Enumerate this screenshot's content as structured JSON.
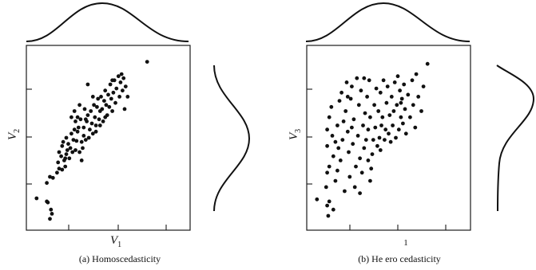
{
  "chart_data": [
    {
      "type": "scatter",
      "panel": "a",
      "caption": "(a) Homoscedasticity",
      "xlabel_var": "V",
      "xlabel_sub": "1",
      "ylabel_var": "V",
      "ylabel_sub": "2",
      "marginal_x": "normal",
      "marginal_y": "normal",
      "points": [
        [
          0.5,
          1.05
        ],
        [
          1.0,
          0.9
        ],
        [
          1.05,
          0.85
        ],
        [
          1.2,
          0.5
        ],
        [
          1.25,
          0.3
        ],
        [
          1.15,
          0.05
        ],
        [
          1.0,
          1.8
        ],
        [
          1.15,
          2.1
        ],
        [
          1.3,
          2.05
        ],
        [
          1.5,
          2.3
        ],
        [
          1.6,
          2.5
        ],
        [
          1.75,
          2.45
        ],
        [
          1.55,
          2.8
        ],
        [
          1.6,
          3.3
        ],
        [
          1.75,
          3.6
        ],
        [
          1.7,
          3.1
        ],
        [
          1.85,
          2.9
        ],
        [
          1.95,
          3.2
        ],
        [
          1.8,
          3.8
        ],
        [
          1.9,
          3.0
        ],
        [
          1.95,
          4.0
        ],
        [
          2.0,
          3.4
        ],
        [
          2.05,
          3.7
        ],
        [
          2.15,
          3.5
        ],
        [
          2.2,
          4.2
        ],
        [
          2.25,
          3.3
        ],
        [
          2.3,
          3.9
        ],
        [
          2.35,
          4.4
        ],
        [
          2.4,
          4.8
        ],
        [
          2.35,
          5.3
        ],
        [
          2.4,
          3.4
        ],
        [
          2.45,
          3.85
        ],
        [
          2.5,
          4.3
        ],
        [
          2.5,
          5.0
        ],
        [
          2.55,
          4.5
        ],
        [
          2.6,
          3.3
        ],
        [
          2.65,
          4.9
        ],
        [
          2.7,
          3.8
        ],
        [
          2.75,
          3.5
        ],
        [
          2.8,
          4.5
        ],
        [
          2.8,
          4.1
        ],
        [
          2.85,
          5.4
        ],
        [
          2.9,
          3.9
        ],
        [
          2.95,
          4.8
        ],
        [
          3.0,
          5.1
        ],
        [
          3.05,
          4.0
        ],
        [
          3.1,
          4.4
        ],
        [
          3.15,
          5.3
        ],
        [
          3.2,
          4.7
        ],
        [
          3.25,
          4.2
        ],
        [
          3.3,
          5.6
        ],
        [
          3.35,
          5.0
        ],
        [
          3.4,
          4.6
        ],
        [
          3.45,
          5.5
        ],
        [
          3.5,
          5.9
        ],
        [
          3.55,
          4.9
        ],
        [
          3.6,
          5.3
        ],
        [
          3.65,
          6.0
        ],
        [
          3.7,
          5.4
        ],
        [
          3.75,
          4.8
        ],
        [
          3.8,
          5.8
        ],
        [
          3.85,
          6.3
        ],
        [
          3.9,
          5.6
        ],
        [
          3.95,
          5.1
        ],
        [
          4.0,
          6.1
        ],
        [
          4.05,
          5.5
        ],
        [
          4.1,
          6.6
        ],
        [
          4.15,
          5.9
        ],
        [
          4.2,
          5.3
        ],
        [
          4.25,
          6.2
        ],
        [
          4.3,
          6.8
        ],
        [
          4.35,
          5.7
        ],
        [
          4.4,
          6.4
        ],
        [
          4.5,
          7.0
        ],
        [
          4.55,
          6.0
        ],
        [
          4.6,
          6.7
        ],
        [
          4.65,
          7.1
        ],
        [
          4.7,
          6.3
        ],
        [
          4.75,
          6.9
        ],
        [
          4.8,
          5.4
        ],
        [
          4.85,
          6.5
        ],
        [
          4.95,
          6.0
        ],
        [
          3.25,
          6.0
        ],
        [
          3.0,
          6.6
        ],
        [
          2.6,
          5.6
        ],
        [
          2.2,
          5.0
        ],
        [
          2.9,
          4.9
        ],
        [
          3.6,
          4.6
        ],
        [
          2.1,
          3.0
        ],
        [
          1.9,
          2.6
        ],
        [
          2.7,
          2.9
        ],
        [
          3.4,
          4.3
        ],
        [
          4.2,
          6.8
        ],
        [
          3.85,
          5.0
        ],
        [
          5.9,
          7.7
        ]
      ]
    },
    {
      "type": "scatter",
      "panel": "b",
      "caption": "(b) He ero cedasticity",
      "xlabel": "1",
      "ylabel_var": "V",
      "ylabel_sub": "3",
      "marginal_x": "normal",
      "marginal_y": "skewed",
      "points": [
        [
          0.5,
          1.0
        ],
        [
          1.0,
          0.7
        ],
        [
          1.1,
          0.9
        ],
        [
          1.05,
          0.2
        ],
        [
          1.3,
          0.5
        ],
        [
          0.95,
          1.6
        ],
        [
          1.0,
          2.3
        ],
        [
          1.1,
          2.6
        ],
        [
          1.0,
          3.6
        ],
        [
          1.0,
          4.4
        ],
        [
          1.1,
          5.0
        ],
        [
          1.2,
          5.5
        ],
        [
          1.25,
          4.1
        ],
        [
          1.3,
          3.1
        ],
        [
          1.4,
          1.9
        ],
        [
          1.5,
          2.4
        ],
        [
          1.55,
          3.5
        ],
        [
          1.5,
          4.6
        ],
        [
          1.6,
          5.8
        ],
        [
          1.7,
          6.2
        ],
        [
          1.65,
          2.9
        ],
        [
          1.75,
          3.9
        ],
        [
          1.8,
          4.8
        ],
        [
          1.85,
          1.4
        ],
        [
          1.9,
          5.3
        ],
        [
          1.95,
          6.7
        ],
        [
          2.0,
          4.3
        ],
        [
          2.05,
          3.3
        ],
        [
          2.1,
          2.1
        ],
        [
          2.15,
          5.9
        ],
        [
          2.2,
          6.5
        ],
        [
          2.25,
          3.7
        ],
        [
          2.3,
          4.9
        ],
        [
          2.35,
          1.6
        ],
        [
          2.4,
          2.6
        ],
        [
          2.45,
          6.9
        ],
        [
          2.5,
          4.1
        ],
        [
          2.55,
          5.6
        ],
        [
          2.6,
          3.0
        ],
        [
          2.65,
          6.3
        ],
        [
          2.7,
          2.3
        ],
        [
          2.75,
          4.6
        ],
        [
          2.8,
          3.5
        ],
        [
          2.85,
          5.2
        ],
        [
          2.9,
          3.9
        ],
        [
          2.95,
          6.0
        ],
        [
          3.0,
          4.4
        ],
        [
          3.05,
          6.8
        ],
        [
          3.1,
          5.0
        ],
        [
          3.15,
          2.5
        ],
        [
          3.2,
          3.2
        ],
        [
          3.25,
          3.9
        ],
        [
          3.3,
          5.6
        ],
        [
          3.35,
          4.5
        ],
        [
          3.4,
          6.4
        ],
        [
          3.45,
          3.6
        ],
        [
          3.5,
          5.3
        ],
        [
          3.55,
          4.0
        ],
        [
          3.6,
          6.2
        ],
        [
          3.65,
          4.6
        ],
        [
          3.7,
          5.0
        ],
        [
          3.75,
          6.8
        ],
        [
          3.8,
          3.9
        ],
        [
          3.85,
          4.4
        ],
        [
          3.9,
          5.7
        ],
        [
          3.95,
          6.5
        ],
        [
          4.0,
          4.2
        ],
        [
          4.05,
          5.1
        ],
        [
          4.1,
          3.8
        ],
        [
          4.15,
          6.0
        ],
        [
          4.2,
          4.6
        ],
        [
          4.25,
          5.3
        ],
        [
          4.3,
          6.7
        ],
        [
          4.35,
          4.0
        ],
        [
          4.4,
          5.6
        ],
        [
          4.45,
          7.0
        ],
        [
          4.5,
          4.4
        ],
        [
          4.55,
          6.3
        ],
        [
          4.6,
          5.0
        ],
        [
          4.65,
          5.9
        ],
        [
          4.7,
          4.7
        ],
        [
          4.75,
          6.6
        ],
        [
          4.8,
          5.4
        ],
        [
          4.85,
          4.2
        ],
        [
          4.95,
          6.1
        ],
        [
          5.05,
          5.0
        ],
        [
          5.15,
          6.8
        ],
        [
          5.2,
          5.6
        ],
        [
          5.3,
          4.5
        ],
        [
          5.35,
          7.1
        ],
        [
          5.45,
          6.0
        ],
        [
          5.6,
          5.3
        ],
        [
          5.7,
          6.5
        ],
        [
          5.9,
          7.6
        ],
        [
          2.6,
          1.3
        ],
        [
          3.0,
          2.9
        ],
        [
          2.2,
          4.5
        ],
        [
          1.4,
          3.8
        ],
        [
          2.8,
          6.9
        ],
        [
          3.1,
          1.9
        ],
        [
          2.0,
          6.0
        ],
        [
          4.6,
          5.7
        ],
        [
          3.6,
          3.4
        ]
      ]
    }
  ]
}
